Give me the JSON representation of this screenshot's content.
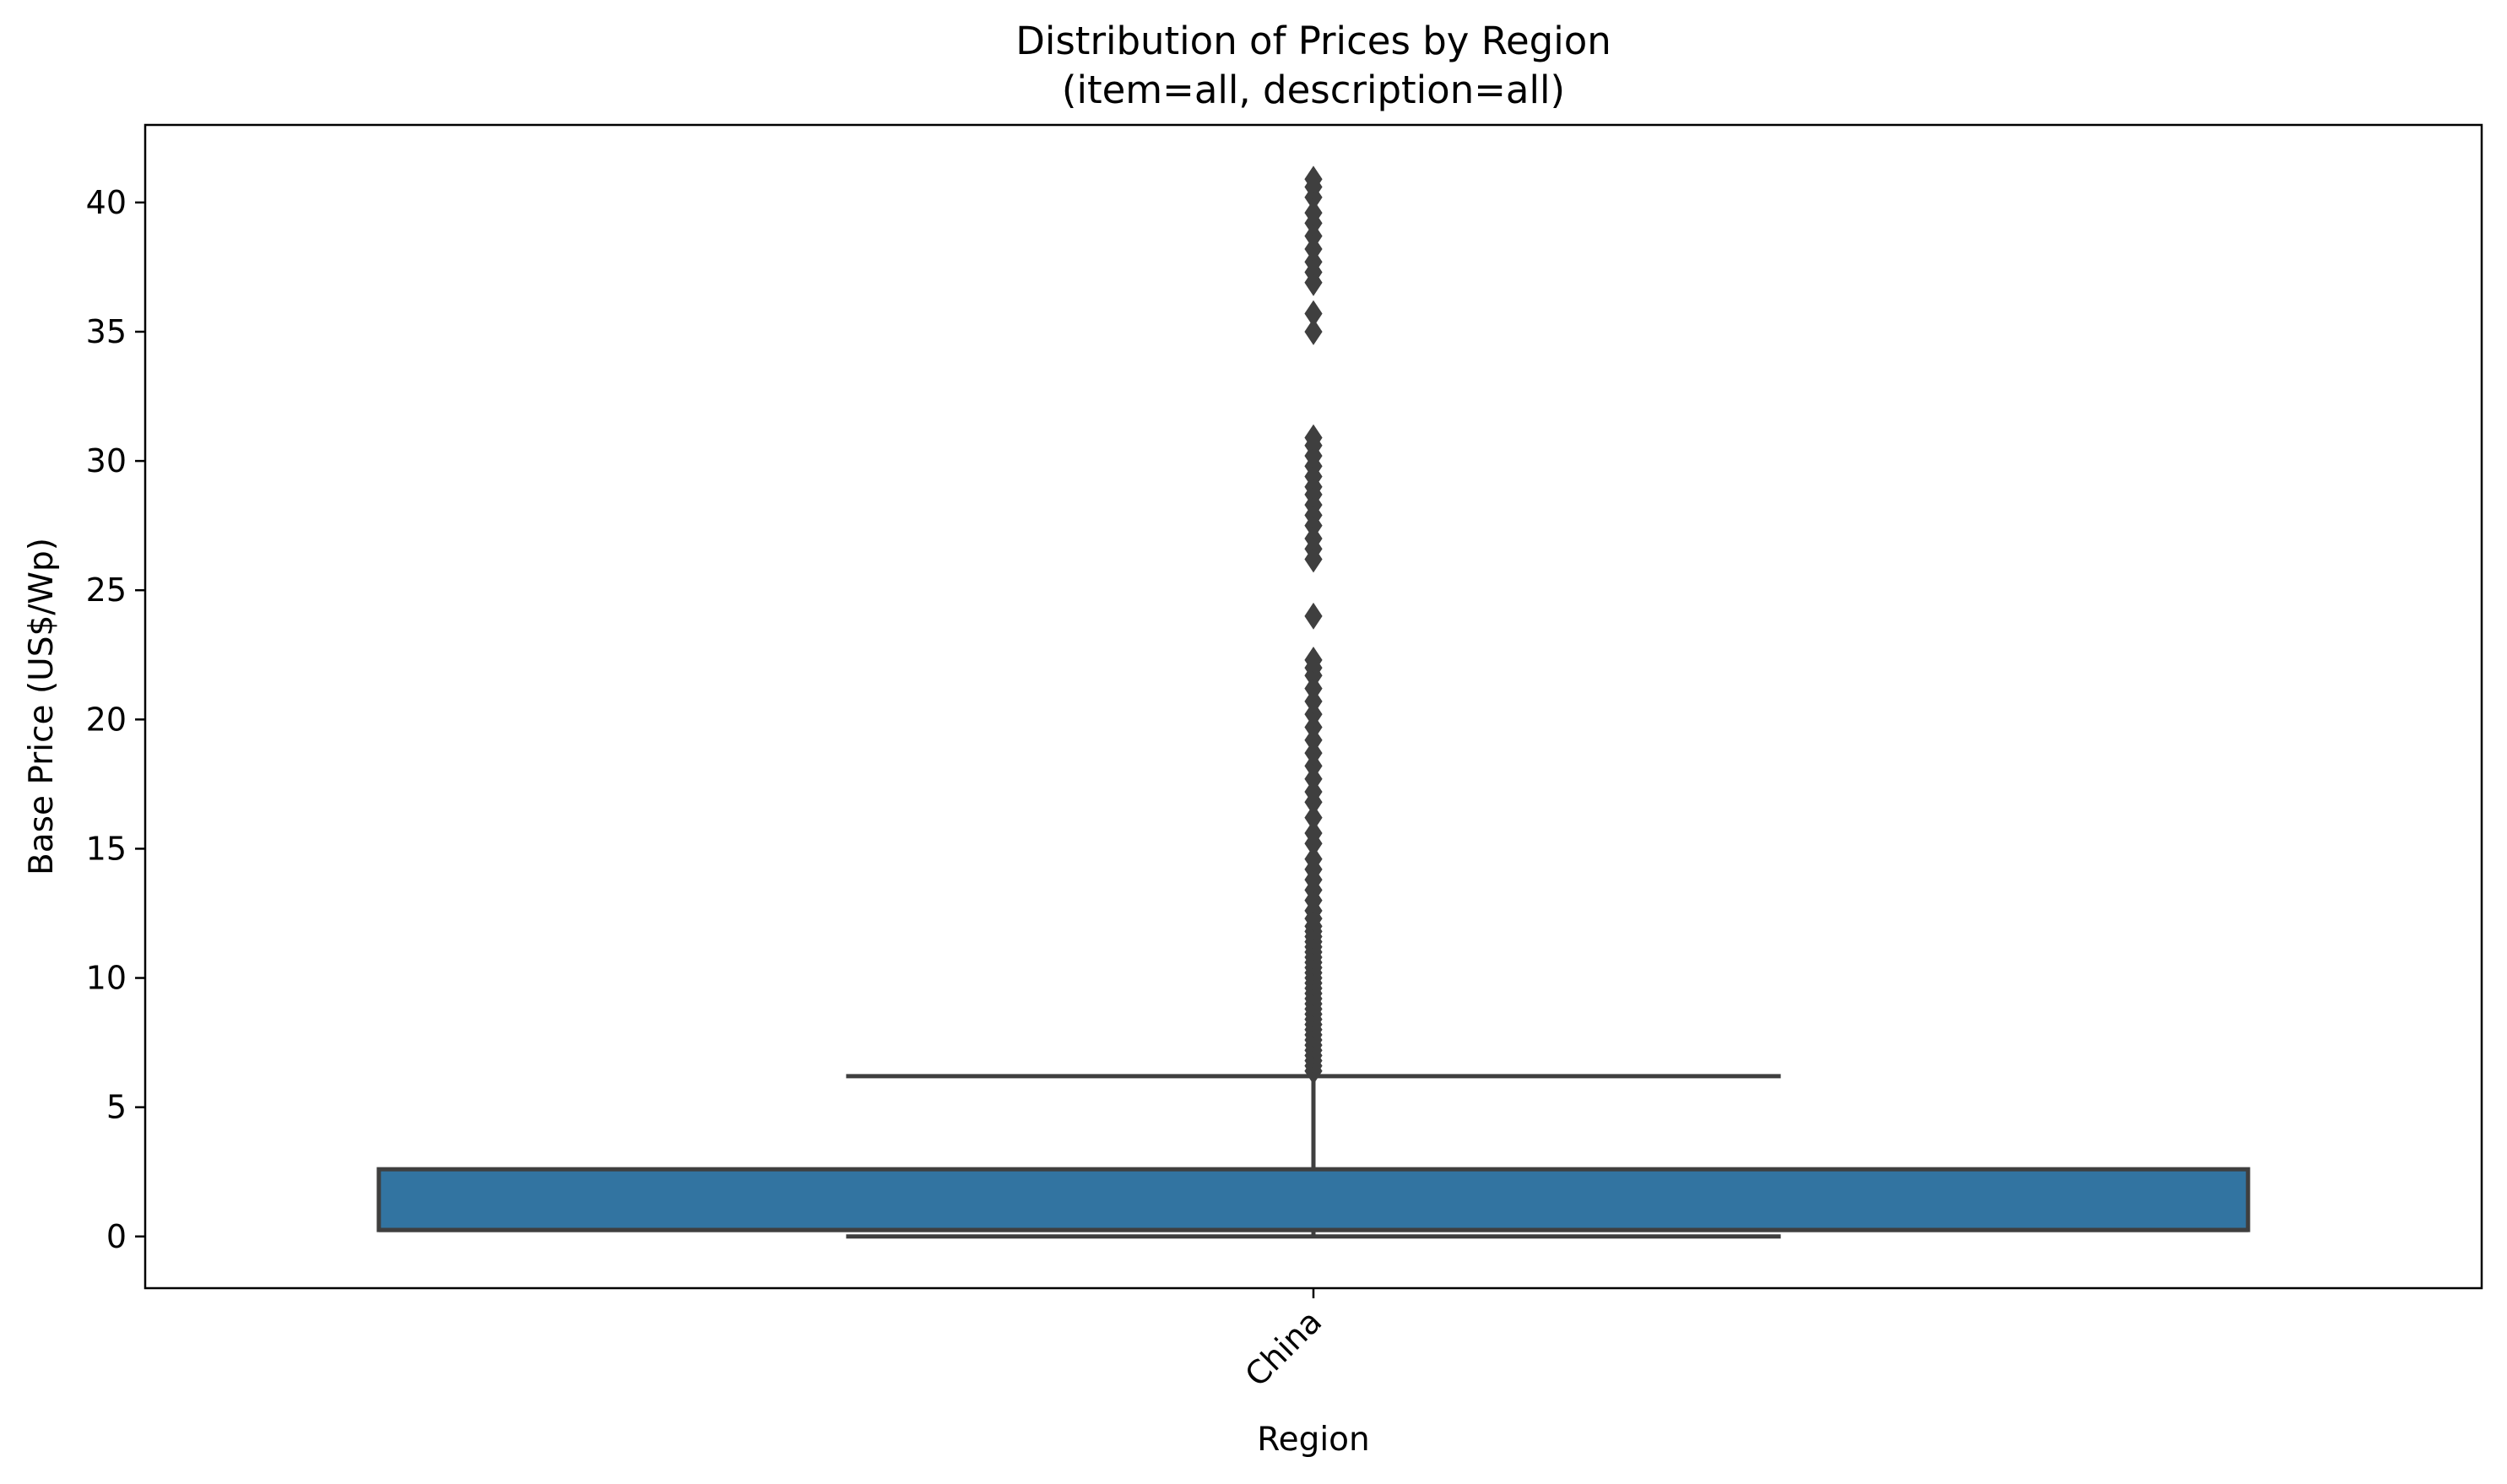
{
  "chart_data": {
    "type": "box",
    "title": "Distribution of Prices by Region",
    "subtitle": "(item=all, description=all)",
    "xlabel": "Region",
    "ylabel": "Base Price (US$/Wp)",
    "categories": [
      "China"
    ],
    "ylim": [
      -2,
      43
    ],
    "yticks": [
      0,
      5,
      10,
      15,
      20,
      25,
      30,
      35,
      40
    ],
    "ytick_labels": [
      "0",
      "5",
      "10",
      "15",
      "20",
      "25",
      "30",
      "35",
      "40"
    ],
    "grid": false,
    "legend": "none",
    "color": "#3274a1",
    "edge_color": "#3f3f3f",
    "boxes": [
      {
        "category": "China",
        "whisker_low": 0.0,
        "q1": 0.25,
        "median": 0.25,
        "q3": 2.6,
        "whisker_high": 6.2,
        "outliers": [
          6.4,
          6.6,
          6.8,
          7.0,
          7.2,
          7.4,
          7.6,
          7.8,
          8.0,
          8.2,
          8.4,
          8.6,
          8.8,
          9.0,
          9.2,
          9.4,
          9.6,
          9.8,
          10.0,
          10.2,
          10.4,
          10.6,
          10.8,
          11.0,
          11.2,
          11.4,
          11.6,
          11.8,
          12.0,
          12.3,
          12.6,
          13.0,
          13.4,
          13.8,
          14.2,
          14.6,
          15.2,
          15.6,
          16.2,
          16.8,
          17.2,
          17.7,
          18.2,
          18.7,
          19.2,
          19.7,
          20.2,
          20.7,
          21.2,
          21.7,
          22.0,
          22.3,
          24.0,
          26.2,
          26.6,
          27.0,
          27.5,
          27.9,
          28.3,
          28.7,
          29.0,
          29.4,
          29.8,
          30.2,
          30.6,
          30.9,
          35.0,
          35.7,
          36.9,
          37.3,
          37.7,
          38.2,
          38.7,
          39.2,
          39.6,
          40.2,
          40.6,
          40.9
        ]
      }
    ]
  }
}
